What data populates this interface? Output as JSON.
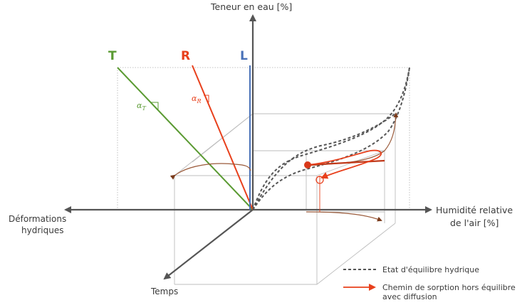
{
  "axes": {
    "y_label": "Teneur en eau [%]",
    "x_label_line1": "Humidité relative",
    "x_label_line2": "de l'air [%]",
    "left_label_line1": "Déformations",
    "left_label_line2": "hydriques",
    "depth_label": "Temps"
  },
  "directions": {
    "T": "T",
    "R": "R",
    "L": "L",
    "colors": {
      "T": "#5a9a32",
      "R": "#e8401c",
      "L": "#4a72b8"
    }
  },
  "angles": {
    "alpha_T": "α",
    "alpha_T_sub": "T",
    "alpha_R": "α",
    "alpha_R_sub": "R"
  },
  "legend": {
    "equilibrium": "Etat d'équilibre hydrique",
    "sorption_line1": "Chemin de sorption hors équilibre",
    "sorption_line2": "avec diffusion"
  },
  "colors": {
    "axis": "#555555",
    "guide": "#b8b8b8",
    "curve": "#9a5a3a",
    "sorption": "#e8401c",
    "dashed": "#555555"
  }
}
